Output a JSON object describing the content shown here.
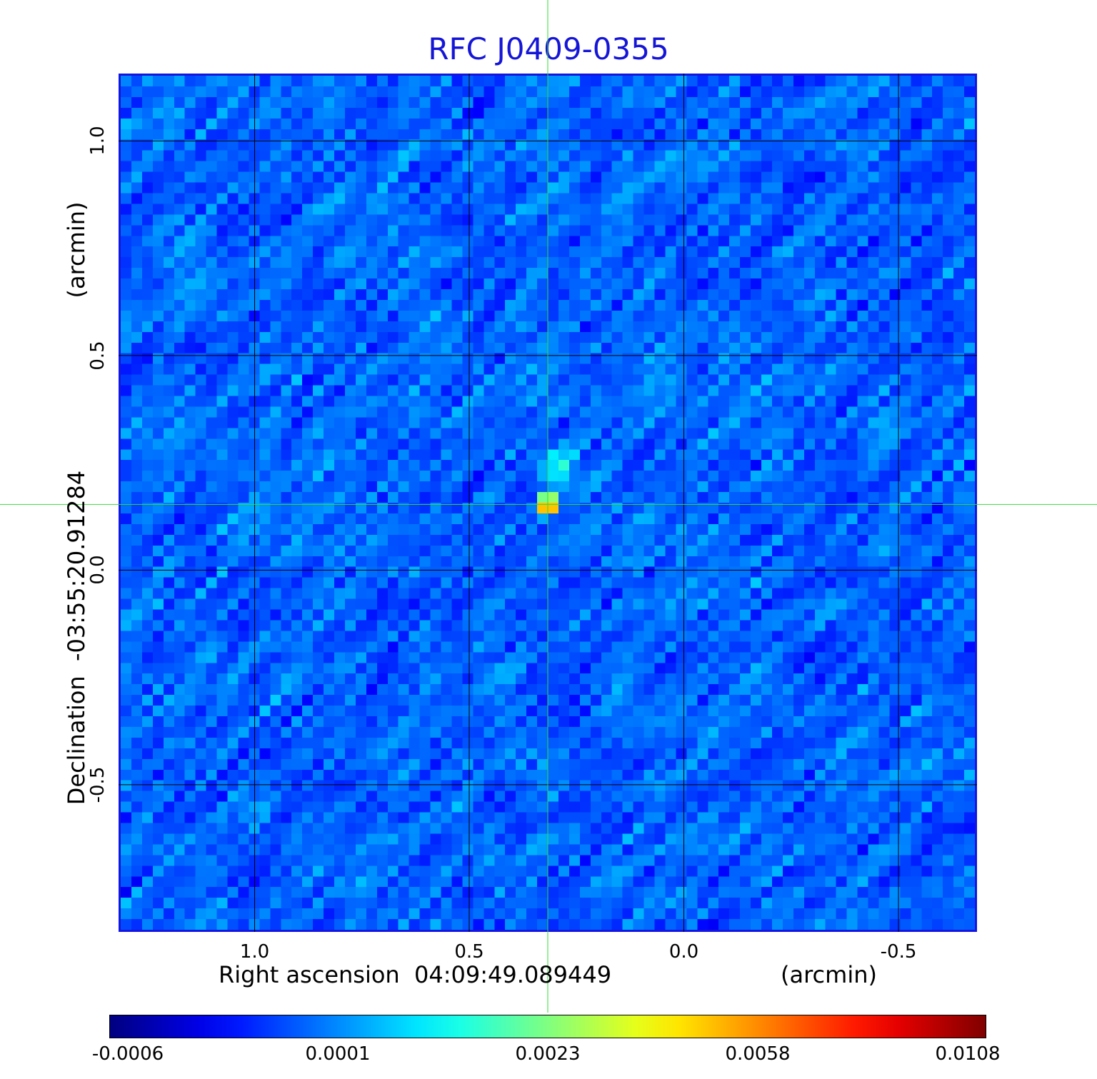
{
  "title": "RFC J0409-0355",
  "x_axis": {
    "label": "Right ascension  04:09:49.089449",
    "unit": "(arcmin)",
    "ticks": [
      "1.0",
      "0.5",
      "0.0",
      "-0.5"
    ],
    "tick_values": [
      1.0,
      0.5,
      0.0,
      -0.5
    ],
    "range": [
      1.317,
      -0.683
    ]
  },
  "y_axis": {
    "label": "Declination  -03:55:20.91284",
    "unit": "(arcmin)",
    "ticks": [
      "1.0",
      "0.5",
      "0.0",
      "-0.5"
    ],
    "tick_values": [
      1.0,
      0.5,
      0.0,
      -0.5
    ],
    "range": [
      -0.843,
      1.157
    ]
  },
  "colorbar": {
    "ticks": [
      "-0.0006",
      "0.0001",
      "0.0023",
      "0.0058",
      "0.0108"
    ],
    "colormap": "jet"
  },
  "colors": {
    "title": "#1515d8",
    "frame": "#1515e0",
    "crosshair": "#33dd33",
    "grid": "#000000"
  },
  "chart_data": {
    "type": "heatmap",
    "title": "RFC J0409-0355",
    "xlabel": "Right ascension  04:09:49.089449",
    "ylabel": "Declination  -03:55:20.91284",
    "x_unit": "arcmin",
    "y_unit": "arcmin",
    "xlim": [
      1.317,
      -0.683
    ],
    "ylim": [
      -0.843,
      1.157
    ],
    "value_range": [
      -0.0006,
      0.0108
    ],
    "grid": true,
    "peak": {
      "x": 0.317,
      "y": 0.153,
      "value": 0.0108
    },
    "crosshair": {
      "x": 0.317,
      "y": 0.153
    },
    "colorbar_ticks": [
      -0.0006,
      0.0001,
      0.0023,
      0.0058,
      0.0108
    ]
  }
}
